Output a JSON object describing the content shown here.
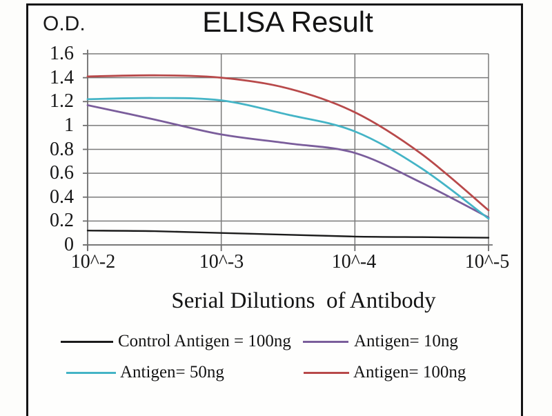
{
  "header": {
    "od_label": "O.D.",
    "title": "ELISA Result"
  },
  "chart_data": {
    "type": "line",
    "title": "ELISA Result",
    "ylabel": "O.D.",
    "xlabel": "Serial Dilutions  of Antibody",
    "x_tick_labels": [
      "10^-2",
      "10^-3",
      "10^-4",
      "10^-5"
    ],
    "y_tick_labels": [
      "1.6",
      "1.4",
      "1.2",
      "1",
      "0.8",
      "0.6",
      "0.4",
      "0.2",
      "0"
    ],
    "ylim": [
      0,
      1.6
    ],
    "grid": true,
    "legend_position": "bottom",
    "x_exponents": [
      -2,
      -2.5,
      -3,
      -3.5,
      -4,
      -4.5,
      -5
    ],
    "colors": {
      "grid": "#7a7a7a",
      "axis": "#6e6e6e",
      "text": "#141414"
    },
    "series": [
      {
        "name": "Control Antigen = 100ng",
        "color": "#1b1b1b",
        "values": [
          0.12,
          0.115,
          0.1,
          0.085,
          0.07,
          0.065,
          0.06
        ]
      },
      {
        "name": "Antigen= 10ng",
        "color": "#7a5d9b",
        "values": [
          1.17,
          1.05,
          0.925,
          0.85,
          0.77,
          0.52,
          0.23
        ]
      },
      {
        "name": "Antigen= 50ng",
        "color": "#44b4c6",
        "values": [
          1.22,
          1.23,
          1.21,
          1.09,
          0.95,
          0.64,
          0.22
        ]
      },
      {
        "name": "Antigen= 100ng",
        "color": "#b8494a",
        "values": [
          1.41,
          1.42,
          1.4,
          1.31,
          1.11,
          0.76,
          0.29
        ]
      }
    ]
  }
}
